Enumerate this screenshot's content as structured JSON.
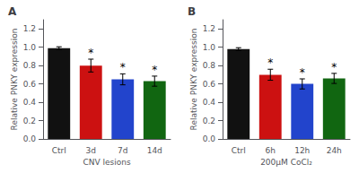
{
  "chart_data": [
    {
      "type": "bar",
      "title": "A",
      "categories": [
        "Ctrl",
        "3d",
        "7d",
        "14d"
      ],
      "values": [
        0.99,
        0.8,
        0.65,
        0.63
      ],
      "errors": [
        0.015,
        0.07,
        0.06,
        0.055
      ],
      "colors": [
        "#111111",
        "#cc1111",
        "#2244cc",
        "#116611"
      ],
      "ylabel": "Relative PNKY expression",
      "xlabel": "CNV lesions",
      "ylim": [
        0,
        1.3
      ],
      "yticks": [
        {
          "value": 0,
          "label": "0.0"
        },
        0.2,
        0.4,
        0.6,
        0.8,
        {
          "value": 1.0,
          "label": "1.0"
        },
        1.2
      ],
      "annotations": [
        {
          "category": "3d",
          "text": "*"
        },
        {
          "category": "7d",
          "text": "*"
        },
        {
          "category": "14d",
          "text": "*"
        }
      ],
      "grid": false
    },
    {
      "type": "bar",
      "title": "B",
      "categories": [
        "Ctrl",
        "6h",
        "12h",
        "24h"
      ],
      "values": [
        0.98,
        0.7,
        0.6,
        0.66
      ],
      "errors": [
        0.015,
        0.06,
        0.055,
        0.055
      ],
      "colors": [
        "#111111",
        "#cc1111",
        "#2244cc",
        "#116611"
      ],
      "ylabel": "Relative PNKY expression",
      "xlabel": "200μM CoCl₂",
      "ylim": [
        0,
        1.3
      ],
      "yticks": [
        {
          "value": 0,
          "label": "0.0"
        },
        0.2,
        0.4,
        0.6,
        0.8,
        {
          "value": 1.0,
          "label": "1.0"
        },
        1.2
      ],
      "annotations": [
        {
          "category": "6h",
          "text": "*"
        },
        {
          "category": "12h",
          "text": "*"
        },
        {
          "category": "24h",
          "text": "*"
        }
      ],
      "grid": false
    }
  ]
}
